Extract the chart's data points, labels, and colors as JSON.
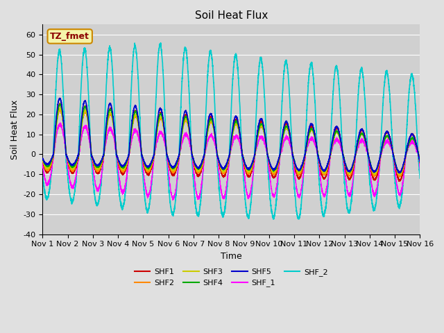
{
  "title": "Soil Heat Flux",
  "xlabel": "Time",
  "ylabel": "Soil Heat Flux",
  "xlim_days": 15,
  "ylim": [
    -40,
    65
  ],
  "yticks": [
    -40,
    -30,
    -20,
    -10,
    0,
    10,
    20,
    30,
    40,
    50,
    60
  ],
  "xtick_labels": [
    "Nov 1",
    "Nov 2",
    "Nov 3",
    "Nov 4",
    "Nov 5",
    "Nov 6",
    "Nov 7",
    "Nov 8",
    "Nov 9",
    "Nov 10",
    "Nov 11",
    "Nov 12",
    "Nov 13",
    "Nov 14",
    "Nov 15",
    "Nov 16"
  ],
  "annotation_text": "TZ_fmet",
  "series_colors": {
    "SHF1": "#cc0000",
    "SHF2": "#ff8800",
    "SHF3": "#cccc00",
    "SHF4": "#00aa00",
    "SHF5": "#0000cc",
    "SHF_1": "#ff00ff",
    "SHF_2": "#00cccc"
  },
  "bg_color": "#e0e0e0",
  "plot_bg_color": "#d0d0d0",
  "grid_color": "#ffffff",
  "title_fontsize": 11,
  "axis_fontsize": 9,
  "tick_fontsize": 8
}
